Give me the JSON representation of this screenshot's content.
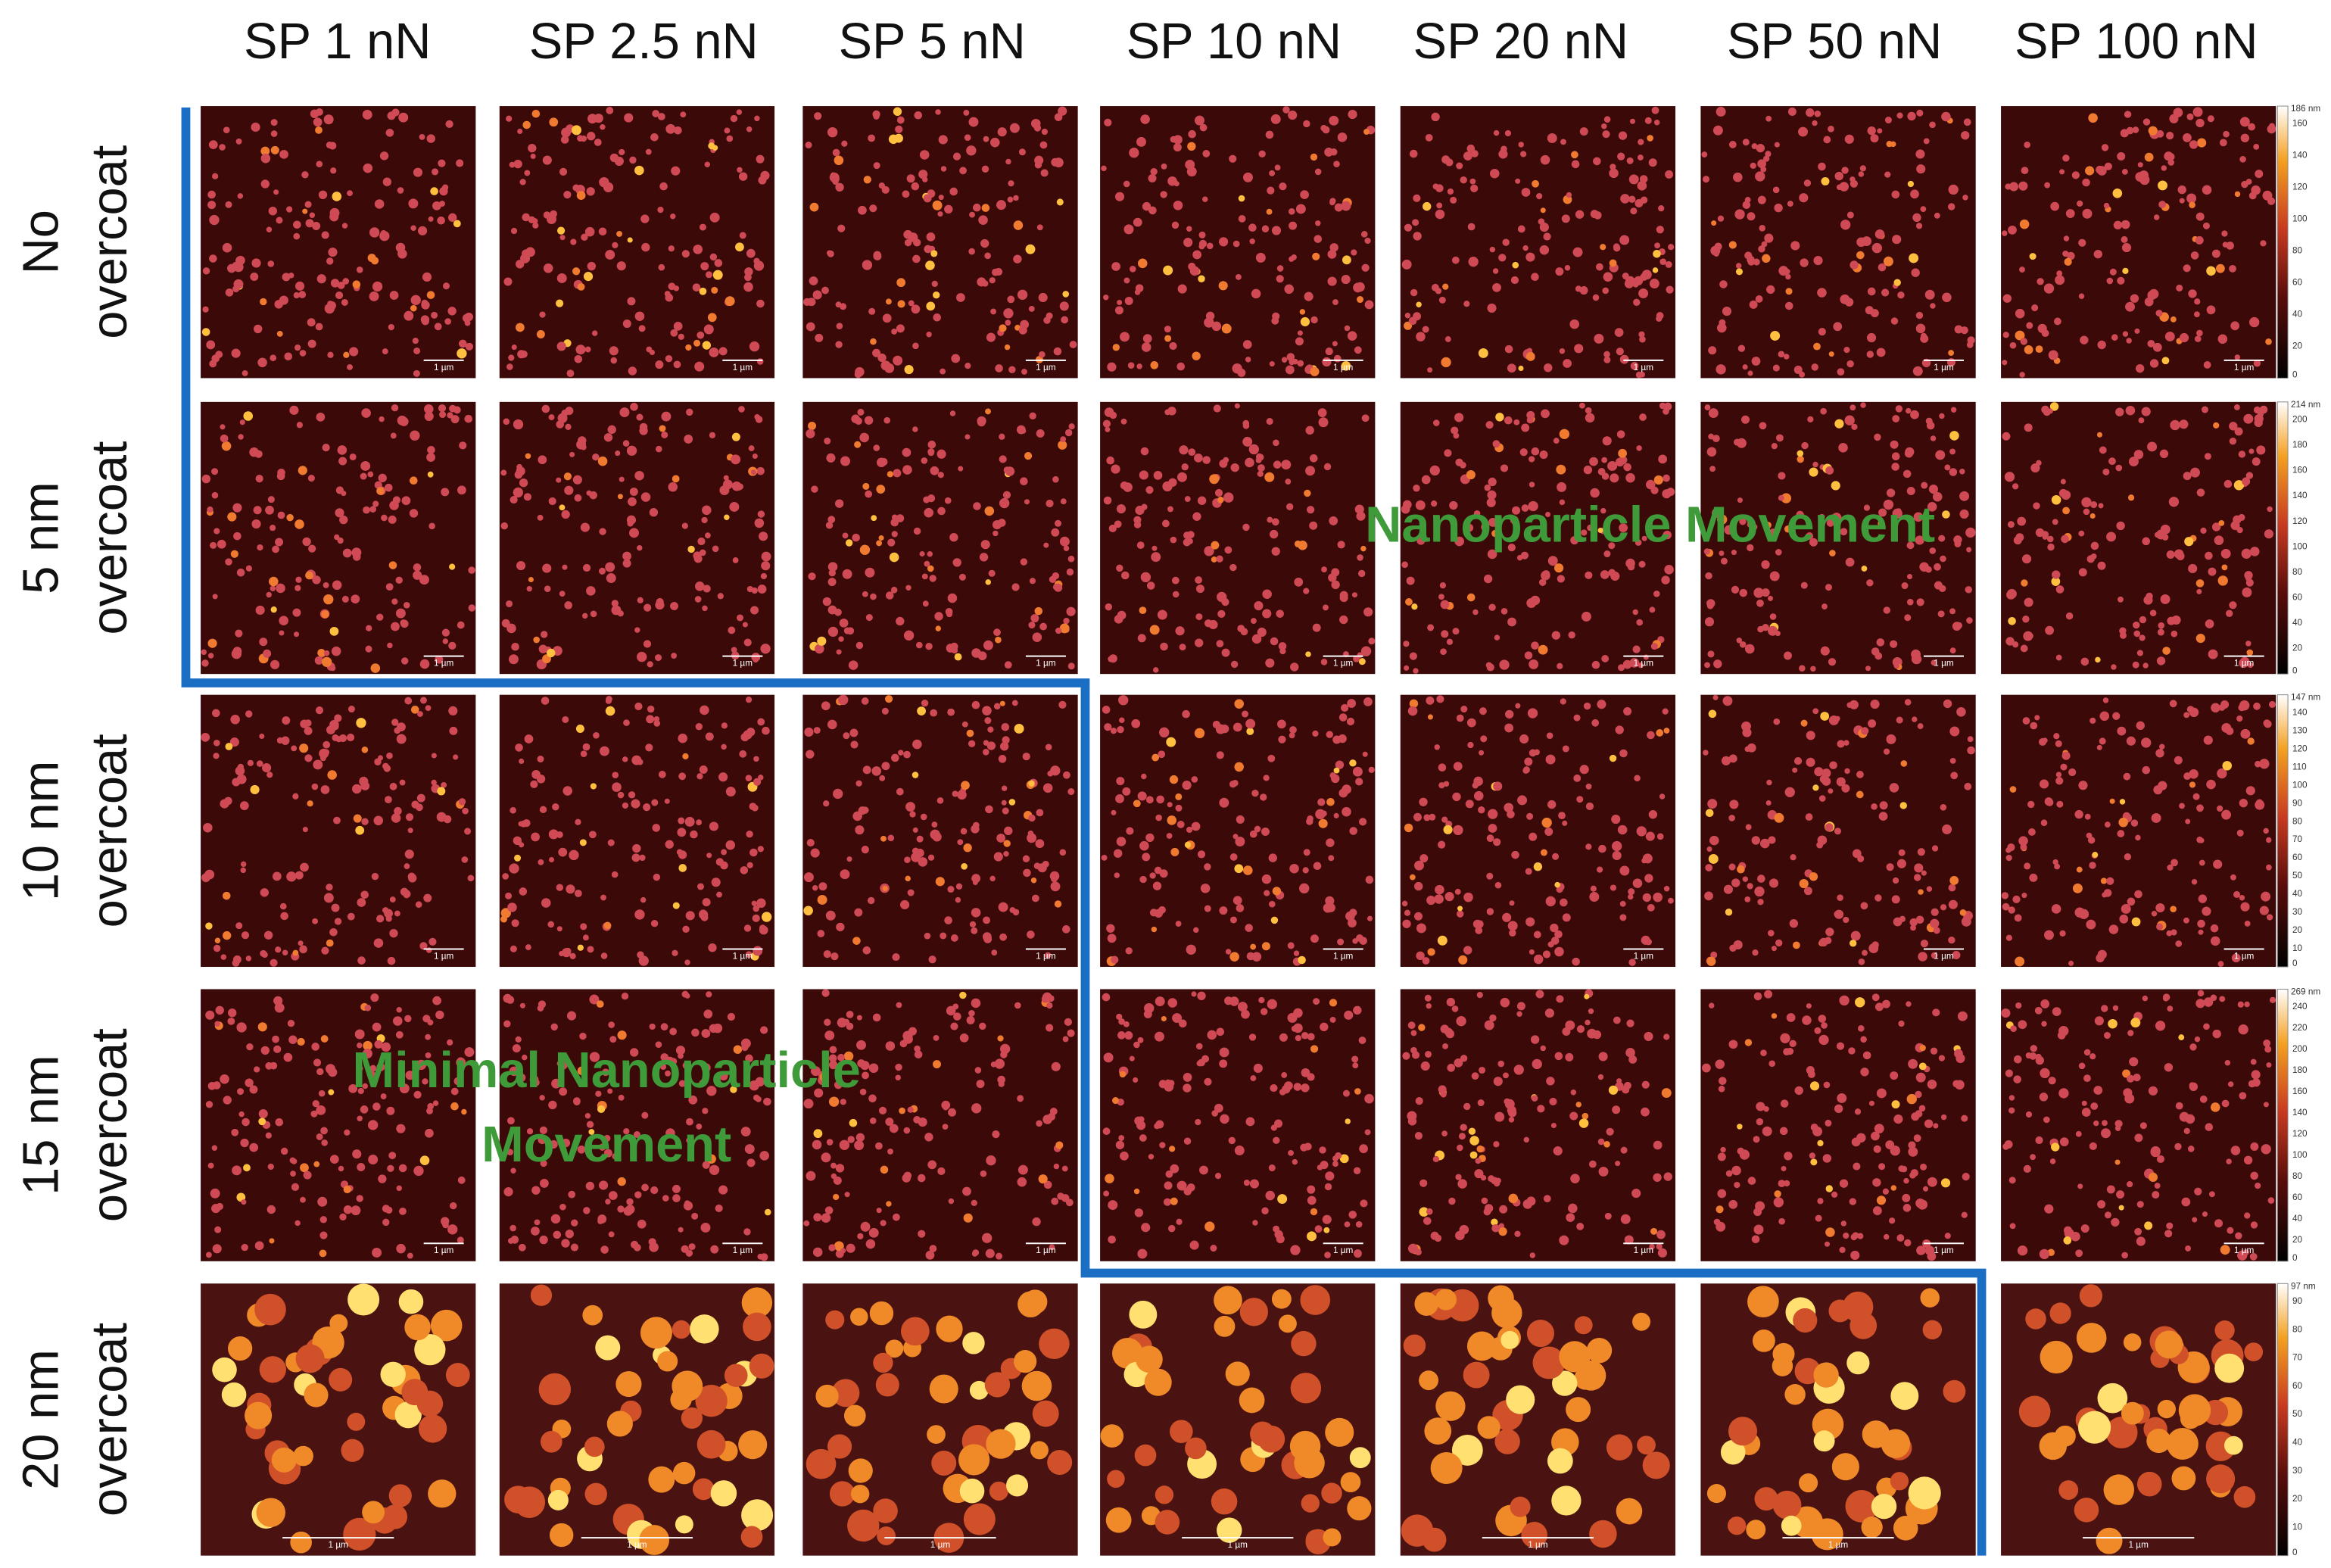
{
  "columns": [
    "SP 1 nN",
    "SP 2.5 nN",
    "SP 5 nN",
    "SP 10 nN",
    "SP 20 nN",
    "SP 50 nN",
    "SP 100 nN"
  ],
  "rows": [
    {
      "label_top": "No",
      "label_bottom": "overcoat",
      "colorbar": {
        "max_label": "186 nm",
        "ticks": [
          160,
          140,
          120,
          100,
          80,
          60,
          40,
          20,
          0
        ]
      }
    },
    {
      "label_top": "5 nm",
      "label_bottom": "overcoat",
      "colorbar": {
        "max_label": "214 nm",
        "ticks": [
          200,
          180,
          160,
          140,
          120,
          100,
          80,
          60,
          40,
          20,
          0
        ]
      }
    },
    {
      "label_top": "10 nm",
      "label_bottom": "overcoat",
      "colorbar": {
        "max_label": "147 nm",
        "ticks": [
          140,
          130,
          120,
          110,
          100,
          90,
          80,
          70,
          60,
          50,
          40,
          30,
          20,
          10,
          0
        ]
      }
    },
    {
      "label_top": "15 nm",
      "label_bottom": "overcoat",
      "colorbar": {
        "max_label": "269 nm",
        "ticks": [
          240,
          220,
          200,
          180,
          160,
          140,
          120,
          100,
          80,
          60,
          40,
          20,
          0
        ]
      }
    },
    {
      "label_top": "20 nm",
      "label_bottom": "overcoat",
      "colorbar": {
        "max_label": "97 nm",
        "ticks": [
          90,
          80,
          70,
          60,
          50,
          40,
          30,
          20,
          10,
          0
        ]
      }
    }
  ],
  "scale_bar": "1 µm",
  "annotations": {
    "movement": "Nanoparticle Movement",
    "minimal": [
      "Minimal Nanoparticle",
      "Movement"
    ]
  }
}
